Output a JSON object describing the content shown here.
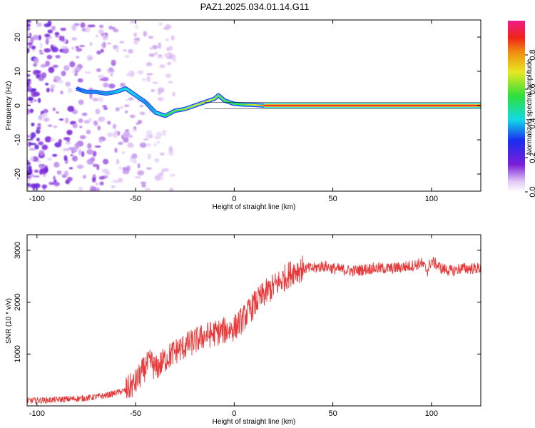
{
  "title": "PAZ1.2025.034.01.14.G11",
  "colors": {
    "snr_line": "#e8393a",
    "track_core": "#e8393a",
    "scatter_strong": "#5a1fd0",
    "scatter_weak": "#c8a8f0"
  },
  "chart_data": [
    {
      "type": "heatmap",
      "title": "PAZ1.2025.034.01.14.G11",
      "xlabel": "Height of straight line (km)",
      "ylabel": "Frequency (Hz)",
      "xlim": [
        -105,
        125
      ],
      "ylim": [
        -25,
        25
      ],
      "xticks": [
        -100,
        -50,
        0,
        50,
        100
      ],
      "yticks": [
        -20,
        -10,
        0,
        10,
        20
      ],
      "x_tick_labels": [
        "-100",
        "-50",
        "0",
        "50",
        "100"
      ],
      "y_tick_labels": [
        "-20",
        "-10",
        "0",
        "10",
        "20"
      ],
      "colorbar": {
        "label": "Normalized spectral amplitude",
        "range": [
          0,
          1
        ],
        "ticks": [
          0.0,
          0.2,
          0.4,
          0.6,
          0.8
        ],
        "tick_labels": [
          "0.0",
          "0.2",
          "0.4",
          "0.6",
          "0.8"
        ]
      },
      "ridge": {
        "x": [
          -80,
          -75,
          -70,
          -65,
          -60,
          -55,
          -50,
          -45,
          -40,
          -35,
          -30,
          -25,
          -20,
          -15,
          -10,
          -8,
          -5,
          0,
          5,
          10,
          15,
          20,
          50,
          100,
          125
        ],
        "y": [
          5,
          4,
          4,
          3.5,
          4,
          5,
          3,
          1,
          -2,
          -3,
          -1.5,
          -1,
          0,
          1,
          2,
          3,
          1.5,
          0.5,
          0.3,
          0.2,
          0,
          0,
          0,
          0,
          0
        ],
        "amplitude": [
          0.3,
          0.35,
          0.35,
          0.35,
          0.4,
          0.45,
          0.4,
          0.35,
          0.4,
          0.55,
          0.6,
          0.65,
          0.7,
          0.75,
          0.65,
          0.6,
          0.6,
          0.55,
          0.6,
          0.7,
          0.85,
          0.9,
          0.9,
          0.9,
          0.9
        ]
      }
    },
    {
      "type": "line",
      "xlabel": "Height of straight line (km)",
      "ylabel": "SNR (10 * v/v)",
      "xlim": [
        -105,
        125
      ],
      "ylim": [
        0,
        3300
      ],
      "xticks": [
        -100,
        -50,
        0,
        50,
        100
      ],
      "yticks": [
        1000,
        2000,
        3000
      ],
      "x_tick_labels": [
        "-100",
        "-50",
        "0",
        "50",
        "100"
      ],
      "y_tick_labels": [
        "1000",
        "2000",
        "3000"
      ],
      "series": [
        {
          "x": [
            -105,
            -95,
            -85,
            -75,
            -65,
            -55,
            -50,
            -45,
            -42,
            -40,
            -35,
            -30,
            -25,
            -20,
            -15,
            -10,
            -5,
            0,
            5,
            10,
            15,
            20,
            25,
            30,
            35,
            40,
            45,
            50,
            60,
            70,
            80,
            90,
            95,
            98,
            100,
            105,
            110,
            115,
            125
          ],
          "y": [
            100,
            110,
            130,
            150,
            200,
            300,
            450,
            750,
            850,
            700,
            900,
            1050,
            1150,
            1250,
            1350,
            1400,
            1450,
            1500,
            1700,
            1950,
            2150,
            2300,
            2450,
            2600,
            2650,
            2650,
            2700,
            2650,
            2600,
            2650,
            2650,
            2700,
            2750,
            2600,
            2800,
            2650,
            2600,
            2650,
            2650
          ]
        }
      ]
    }
  ]
}
